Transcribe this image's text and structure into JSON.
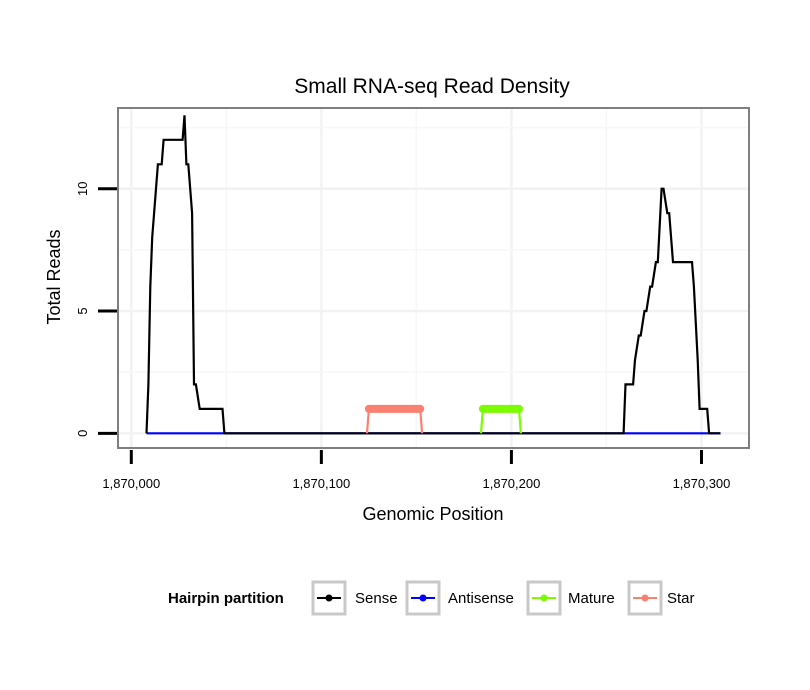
{
  "chart_data": {
    "type": "line",
    "title": "Small RNA-seq Read Density",
    "xlabel": "Genomic Position",
    "ylabel": "Total Reads",
    "xlim": [
      1869993,
      1870325
    ],
    "ylim": [
      -0.6,
      13.3
    ],
    "x_ticks": [
      {
        "value": 1870000,
        "label": "1,870,000"
      },
      {
        "value": 1870100,
        "label": "1,870,100"
      },
      {
        "value": 1870200,
        "label": "1,870,200"
      },
      {
        "value": 1870300,
        "label": "1,870,300"
      }
    ],
    "y_ticks": [
      {
        "value": 0,
        "label": "0"
      },
      {
        "value": 5,
        "label": "5"
      },
      {
        "value": 10,
        "label": "10"
      }
    ],
    "grid": true,
    "legend": {
      "title": "Hairpin partition",
      "position": "bottom",
      "entries": [
        "Sense",
        "Antisense",
        "Mature",
        "Star"
      ]
    },
    "series": [
      {
        "name": "Sense",
        "color": "#000000",
        "x": [
          1870008,
          1870009,
          1870010,
          1870011,
          1870012,
          1870013,
          1870014,
          1870016,
          1870017,
          1870027,
          1870028,
          1870029,
          1870030,
          1870031,
          1870032,
          1870033,
          1870034,
          1870036,
          1870037,
          1870048,
          1870049,
          1870124,
          1870125,
          1870152,
          1870153,
          1870184,
          1870185,
          1870204,
          1870205,
          1870259,
          1870260,
          1870264,
          1870265,
          1870267,
          1870268,
          1870270,
          1870271,
          1870273,
          1870274,
          1870276,
          1870277,
          1870279,
          1870280,
          1870282,
          1870283,
          1870285,
          1870286,
          1870295,
          1870296,
          1870298,
          1870299,
          1870303,
          1870304,
          1870310
        ],
        "values": [
          0,
          2,
          6,
          8,
          9,
          10,
          11,
          11,
          12,
          12,
          13,
          11,
          11,
          10,
          9,
          2,
          2,
          1,
          1,
          1,
          0,
          0,
          0,
          0,
          0,
          0,
          0,
          0,
          0,
          0,
          2,
          2,
          3,
          4,
          4,
          5,
          5,
          6,
          6,
          7,
          7,
          10,
          10,
          9,
          9,
          7,
          7,
          7,
          6,
          3,
          1,
          1,
          0,
          0
        ]
      },
      {
        "name": "Antisense",
        "color": "#0000ff",
        "x": [
          1870008,
          1870310
        ],
        "values": [
          0,
          0
        ]
      },
      {
        "name": "Mature",
        "color": "#7cfc00",
        "x": [
          1870184,
          1870185,
          1870204,
          1870205
        ],
        "values": [
          0,
          1,
          1,
          0
        ]
      },
      {
        "name": "Star",
        "color": "#fa8072",
        "x": [
          1870124,
          1870125,
          1870152,
          1870153
        ],
        "values": [
          0,
          1,
          1,
          0
        ]
      }
    ]
  }
}
